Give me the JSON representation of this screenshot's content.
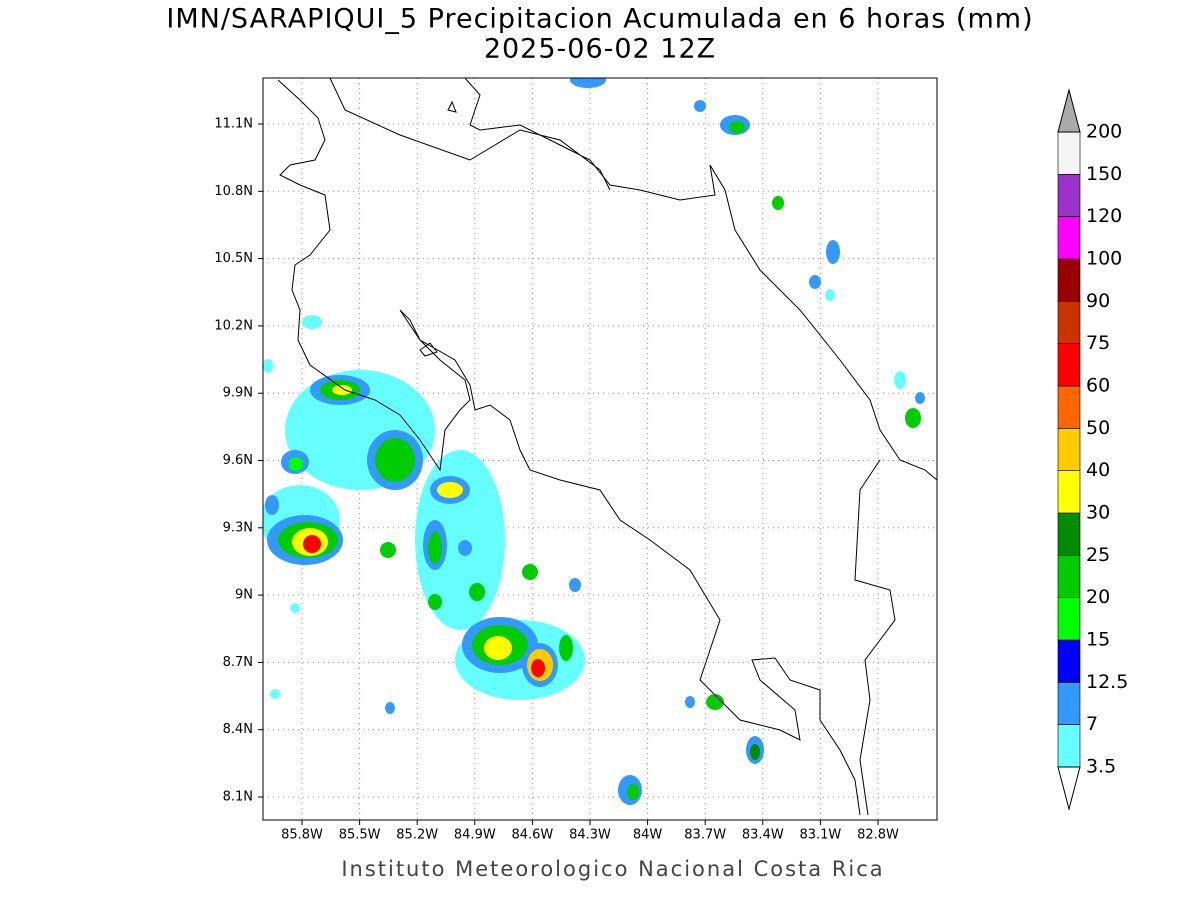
{
  "title": "IMN/SARAPIQUI_5 Precipitacion Acumulada en 6 horas (mm)",
  "subtitle": "2025-06-02 12Z",
  "map": {
    "lon_ticks": [
      "85.8W",
      "85.5W",
      "85.2W",
      "84.9W",
      "84.6W",
      "84.3W",
      "84W",
      "83.7W",
      "83.4W",
      "83.1W",
      "82.8W"
    ],
    "lat_ticks": [
      "11.1N",
      "10.8N",
      "10.5N",
      "10.2N",
      "9.9N",
      "9.6N",
      "9.3N",
      "9N",
      "8.7N",
      "8.4N",
      "8.1N"
    ]
  },
  "colorbar": {
    "levels": [
      3.5,
      7,
      12.5,
      15,
      20,
      25,
      30,
      40,
      50,
      60,
      75,
      90,
      100,
      120,
      150,
      200
    ],
    "colors": [
      "#66ffff",
      "#3399ff",
      "#0000ff",
      "#00ff00",
      "#00cc00",
      "#008c00",
      "#ffff00",
      "#ffcc00",
      "#ff6600",
      "#ff0000",
      "#cc3300",
      "#990000",
      "#ff00ff",
      "#9933cc",
      "#f5f5f5"
    ],
    "over_color": "#aaaaaa",
    "under_color": "#ffffff"
  },
  "footer": "Instituto Meteorologico Nacional Costa Rica"
}
